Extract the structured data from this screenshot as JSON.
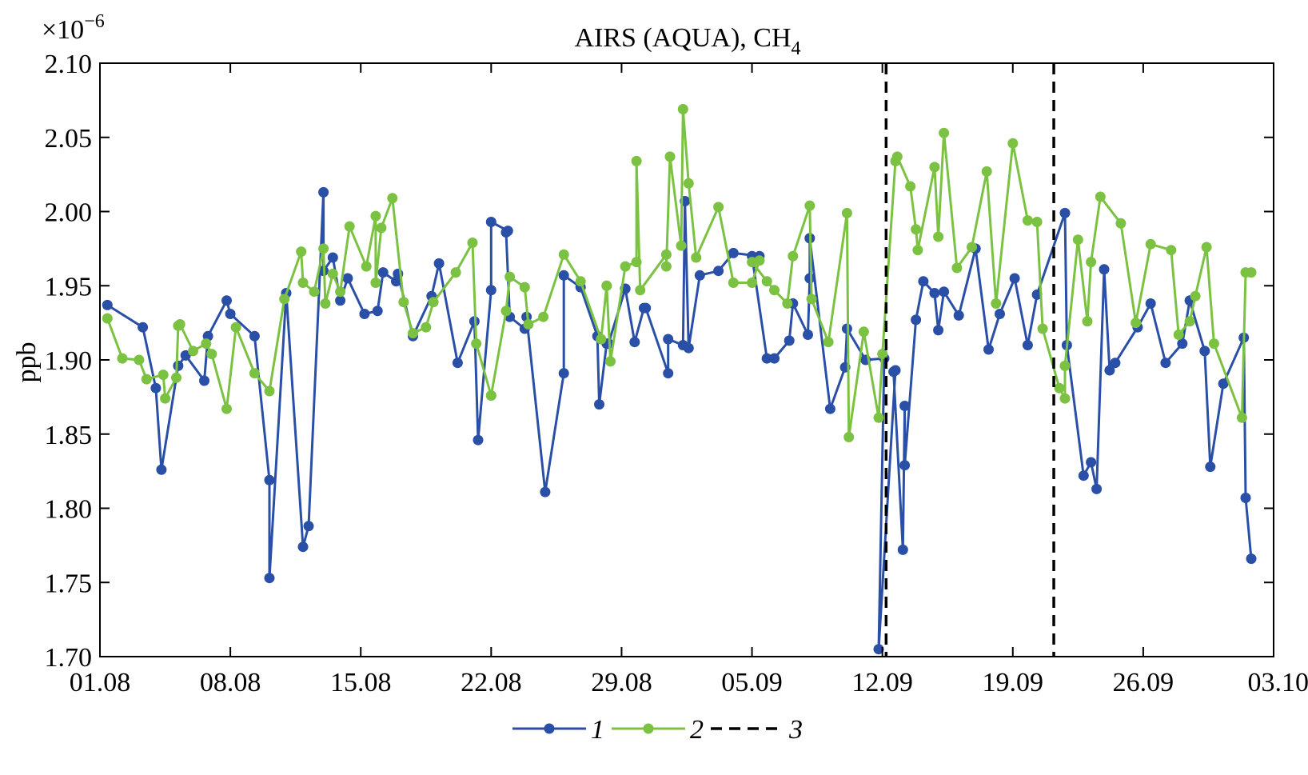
{
  "chart_data": {
    "type": "line",
    "title": "AIRS (AQUA), CH",
    "title_subscript": "4",
    "multiplier_base": "×10",
    "multiplier_exponent": "−6",
    "ylabel": "ppb",
    "xlabel": "",
    "ylim": [
      1.7,
      2.1
    ],
    "y_ticks": [
      1.7,
      1.75,
      1.8,
      1.85,
      1.9,
      1.95,
      2.0,
      2.05,
      2.1
    ],
    "y_tick_labels": [
      "1.70",
      "1.75",
      "1.80",
      "1.85",
      "1.90",
      "1.95",
      "2.00",
      "2.05",
      "2.10"
    ],
    "x_unit": "day of period (0 = 01.08)",
    "xlim": [
      0,
      63
    ],
    "x_ticks": [
      0,
      7,
      14,
      21,
      28,
      35,
      42,
      49,
      56,
      63
    ],
    "x_tick_labels": [
      "01.08",
      "08.08",
      "15.08",
      "22.08",
      "29.08",
      "05.09",
      "12.09",
      "19.09",
      "26.09",
      "03.10"
    ],
    "grid": false,
    "legend_position": "bottom-center",
    "series": [
      {
        "name": "1",
        "color": "#2a4fa6",
        "marker": "circle",
        "x": [
          0.4,
          2.3,
          3.0,
          3.3,
          4.2,
          4.6,
          5.6,
          5.8,
          6.8,
          7.0,
          8.3,
          9.1,
          9.1,
          10.0,
          10.9,
          11.2,
          12.0,
          12.0,
          12.5,
          12.9,
          13.3,
          14.2,
          14.9,
          15.2,
          15.9,
          16.0,
          16.8,
          17.8,
          18.2,
          19.2,
          20.1,
          20.3,
          21.0,
          21.0,
          21.9,
          21.8,
          22.0,
          22.8,
          22.9,
          23.9,
          24.9,
          24.9,
          25.8,
          26.7,
          26.8,
          27.2,
          27.3,
          28.2,
          28.2,
          28.7,
          29.2,
          29.3,
          30.5,
          30.5,
          31.3,
          31.4,
          31.6,
          32.2,
          33.2,
          34.0,
          35.4,
          35.0,
          35.8,
          36.2,
          37.0,
          37.2,
          38.0,
          38.1,
          38.1,
          39.2,
          40.0,
          40.1,
          41.1,
          42.1,
          41.8,
          42.7,
          42.6,
          43.1,
          43.2,
          43.2,
          43.8,
          44.2,
          44.8,
          45.0,
          45.3,
          46.1,
          47.0,
          47.7,
          48.3,
          49.1,
          49.8,
          50.3,
          51.8,
          51.9,
          52.8,
          53.2,
          53.5,
          53.9,
          54.2,
          54.5,
          55.7,
          56.4,
          57.2,
          58.1,
          58.5,
          59.3,
          59.6,
          60.3,
          61.4,
          61.5,
          61.8
        ],
        "y": [
          1.937,
          1.922,
          1.881,
          1.826,
          1.896,
          1.903,
          1.886,
          1.916,
          1.94,
          1.931,
          1.916,
          1.819,
          1.753,
          1.945,
          1.774,
          1.788,
          2.013,
          1.96,
          1.969,
          1.94,
          1.955,
          1.931,
          1.933,
          1.959,
          1.953,
          1.958,
          1.916,
          1.943,
          1.965,
          1.898,
          1.926,
          1.846,
          1.947,
          1.993,
          1.987,
          1.986,
          1.929,
          1.921,
          1.929,
          1.811,
          1.891,
          1.957,
          1.949,
          1.916,
          1.87,
          1.911,
          1.911,
          1.948,
          1.948,
          1.912,
          1.935,
          1.935,
          1.891,
          1.914,
          1.91,
          2.007,
          1.908,
          1.957,
          1.96,
          1.972,
          1.97,
          1.97,
          1.901,
          1.901,
          1.913,
          1.938,
          1.917,
          1.955,
          1.982,
          1.867,
          1.895,
          1.921,
          1.9,
          1.901,
          1.705,
          1.893,
          1.892,
          1.772,
          1.869,
          1.829,
          1.927,
          1.953,
          1.945,
          1.92,
          1.946,
          1.93,
          1.975,
          1.907,
          1.931,
          1.955,
          1.91,
          1.944,
          1.999,
          1.91,
          1.822,
          1.831,
          1.813,
          1.961,
          1.893,
          1.898,
          1.922,
          1.938,
          1.898,
          1.911,
          1.94,
          1.906,
          1.828,
          1.884,
          1.915,
          1.807,
          1.766
        ]
      },
      {
        "name": "2",
        "color": "#7cc242",
        "marker": "circle",
        "x": [
          0.4,
          1.2,
          2.1,
          2.5,
          3.4,
          3.5,
          4.1,
          4.2,
          4.3,
          5.0,
          5.7,
          6.0,
          6.8,
          7.3,
          8.3,
          9.1,
          9.9,
          10.8,
          10.9,
          11.5,
          12.0,
          12.1,
          12.5,
          12.9,
          13.4,
          14.3,
          14.8,
          14.8,
          15.1,
          15.7,
          16.3,
          16.8,
          17.5,
          17.9,
          19.1,
          20.0,
          20.2,
          21.0,
          21.0,
          21.8,
          22.0,
          22.8,
          23.0,
          23.8,
          24.9,
          25.8,
          26.9,
          27.2,
          27.2,
          27.4,
          28.2,
          28.8,
          28.8,
          29.0,
          30.4,
          30.4,
          30.6,
          31.2,
          31.3,
          31.6,
          32.0,
          33.2,
          34.0,
          35.0,
          35.4,
          35.0,
          35.8,
          36.2,
          36.9,
          37.2,
          38.1,
          38.2,
          39.1,
          40.1,
          40.2,
          41.0,
          41.8,
          42.0,
          42.7,
          42.8,
          43.5,
          43.8,
          43.9,
          44.8,
          45.0,
          45.3,
          46.0,
          46.8,
          47.6,
          48.1,
          49.0,
          49.8,
          50.3,
          50.6,
          51.5,
          51.8,
          51.8,
          52.5,
          53.0,
          53.2,
          53.7,
          54.8,
          55.6,
          56.4,
          57.5,
          57.9,
          58.5,
          58.8,
          59.4,
          59.8,
          61.3,
          61.5,
          61.8
        ],
        "y": [
          1.928,
          1.901,
          1.9,
          1.887,
          1.89,
          1.874,
          1.888,
          1.923,
          1.924,
          1.906,
          1.911,
          1.904,
          1.867,
          1.922,
          1.891,
          1.879,
          1.941,
          1.973,
          1.952,
          1.946,
          1.975,
          1.938,
          1.958,
          1.946,
          1.99,
          1.963,
          1.997,
          1.952,
          1.989,
          2.009,
          1.939,
          1.918,
          1.922,
          1.939,
          1.959,
          1.979,
          1.911,
          1.876,
          1.876,
          1.933,
          1.956,
          1.949,
          1.924,
          1.929,
          1.971,
          1.953,
          1.914,
          1.95,
          1.95,
          1.899,
          1.963,
          1.966,
          2.034,
          1.947,
          1.971,
          1.963,
          2.037,
          1.977,
          2.069,
          2.019,
          1.969,
          2.003,
          1.952,
          1.952,
          1.967,
          1.966,
          1.953,
          1.947,
          1.938,
          1.97,
          2.004,
          1.941,
          1.912,
          1.999,
          1.848,
          1.919,
          1.861,
          1.904,
          2.034,
          2.037,
          2.017,
          1.988,
          1.974,
          2.03,
          1.983,
          2.053,
          1.962,
          1.976,
          2.027,
          1.938,
          2.046,
          1.994,
          1.993,
          1.921,
          1.881,
          1.874,
          1.896,
          1.981,
          1.926,
          1.966,
          2.01,
          1.992,
          1.925,
          1.978,
          1.974,
          1.917,
          1.926,
          1.943,
          1.976,
          1.911,
          1.861,
          1.959,
          1.959
        ]
      },
      {
        "name": "3",
        "color": "#000000",
        "style": "dashed",
        "vertical_lines_x": [
          42.2,
          51.2
        ]
      }
    ]
  }
}
